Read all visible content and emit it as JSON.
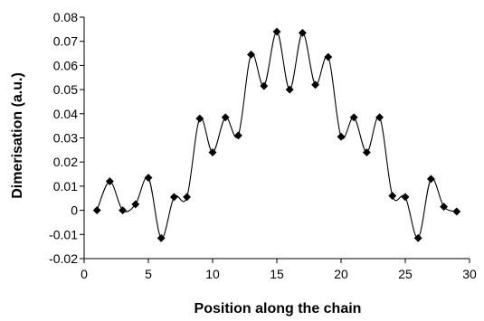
{
  "chart_data": {
    "type": "line",
    "title": "",
    "xlabel": "Position along the chain",
    "ylabel": "Dimerisation (a.u.)",
    "xlim": [
      0,
      30
    ],
    "ylim": [
      -0.02,
      0.08
    ],
    "x_ticks": [
      0,
      5,
      10,
      15,
      20,
      25,
      30
    ],
    "x_tick_labels": [
      "0",
      "5",
      "10",
      "15",
      "20",
      "25",
      "30"
    ],
    "y_ticks": [
      -0.02,
      -0.01,
      0,
      0.01,
      0.02,
      0.03,
      0.04,
      0.05,
      0.06,
      0.07,
      0.08
    ],
    "y_tick_labels": [
      "-0.02",
      "-0.01",
      "0",
      "0.01",
      "0.02",
      "0.03",
      "0.04",
      "0.05",
      "0.06",
      "0.07",
      "0.08"
    ],
    "grid": false,
    "smooth_line": true,
    "marker": "diamond",
    "series": [
      {
        "name": "",
        "color": "#000000",
        "x": [
          1,
          2,
          3,
          4,
          5,
          6,
          7,
          8,
          9,
          10,
          11,
          12,
          13,
          14,
          15,
          16,
          17,
          18,
          19,
          20,
          21,
          22,
          23,
          24,
          25,
          26,
          27,
          28,
          29
        ],
        "y": [
          0.0,
          0.012,
          0.0,
          0.0025,
          0.0135,
          -0.0115,
          0.0055,
          0.0055,
          0.038,
          0.024,
          0.0385,
          0.031,
          0.0645,
          0.0515,
          0.074,
          0.05,
          0.0735,
          0.052,
          0.0635,
          0.0305,
          0.0385,
          0.024,
          0.0385,
          0.006,
          0.0055,
          -0.0115,
          0.013,
          0.0015,
          -0.0005
        ]
      }
    ]
  }
}
